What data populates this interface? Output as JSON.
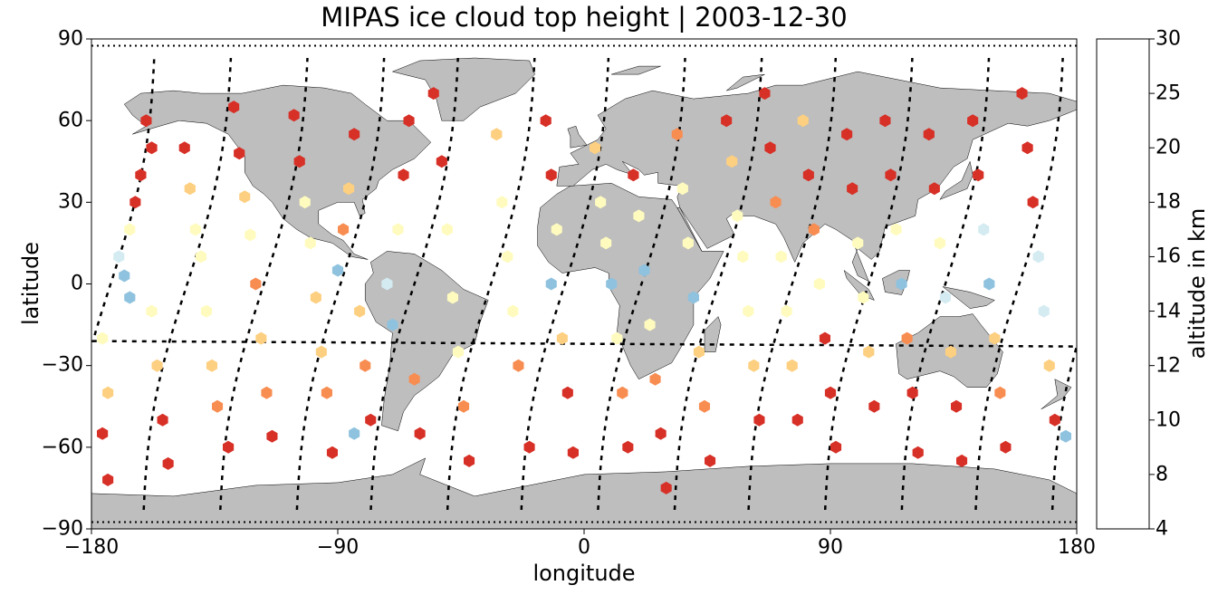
{
  "title": "MIPAS ice cloud top height | 2003-12-30",
  "xlabel": "longitude",
  "ylabel": "latitude",
  "colorbar_label": "altitude in km",
  "x_ticks": [
    "−180",
    "−90",
    "0",
    "90",
    "180"
  ],
  "y_ticks": [
    "−90",
    "−60",
    "−30",
    "0",
    "30",
    "60",
    "90"
  ],
  "colorbar_ticks": [
    "4",
    "8",
    "10",
    "12",
    "14",
    "16",
    "18",
    "20",
    "25",
    "30"
  ],
  "colors": {
    "land": "#bebebe",
    "coast": "#000000",
    "track": "#000000"
  },
  "chart_data": {
    "type": "scatter",
    "projection": "plate-carree",
    "title": "MIPAS ice cloud top height | 2003-12-30",
    "xlabel": "longitude",
    "ylabel": "latitude",
    "xlim": [
      -180,
      180
    ],
    "ylim": [
      -90,
      90
    ],
    "colorbar": {
      "label": "altitude in km",
      "bounds": [
        4,
        8,
        10,
        12,
        14,
        16,
        18,
        20,
        25,
        30
      ],
      "colors": [
        "#a50026",
        "#d73027",
        "#f46d43",
        "#fdae61",
        "#fee090",
        "#ffffbf",
        "#e0f3f8",
        "#abd9e9",
        "#74add1",
        "#4575b4",
        "#313695"
      ],
      "bin_colors": [
        "#a50026",
        "#d73027",
        "#f88d52",
        "#fdcf80",
        "#fffbbf",
        "#d4ebf2",
        "#8fc2de",
        "#4f82b8",
        "#313694"
      ]
    },
    "marker": "hexagon",
    "orbit_tracks_lon_at_equator": [
      -173,
      -145,
      -117,
      -89,
      -62,
      -34,
      -7,
      21,
      49,
      76,
      104,
      132,
      159
    ],
    "points": [
      [
        -170,
        10,
        16
      ],
      [
        -168,
        3,
        19
      ],
      [
        -166,
        -5,
        19
      ],
      [
        -176,
        -20,
        14
      ],
      [
        -174,
        -40,
        12
      ],
      [
        -176,
        -55,
        9
      ],
      [
        -174,
        -72,
        8
      ],
      [
        -160,
        60,
        9
      ],
      [
        -158,
        50,
        8
      ],
      [
        -162,
        40,
        8
      ],
      [
        -164,
        30,
        9
      ],
      [
        -166,
        20,
        15
      ],
      [
        -158,
        -10,
        14
      ],
      [
        -156,
        -30,
        12
      ],
      [
        -154,
        -50,
        9
      ],
      [
        -152,
        -66,
        8
      ],
      [
        -146,
        50,
        9
      ],
      [
        -144,
        35,
        13
      ],
      [
        -142,
        20,
        15
      ],
      [
        -140,
        10,
        15
      ],
      [
        -138,
        -10,
        14
      ],
      [
        -136,
        -30,
        12
      ],
      [
        -134,
        -45,
        11
      ],
      [
        -130,
        -60,
        9
      ],
      [
        -128,
        65,
        8
      ],
      [
        -126,
        48,
        9
      ],
      [
        -124,
        32,
        13
      ],
      [
        -122,
        18,
        15
      ],
      [
        -120,
        0,
        10
      ],
      [
        -118,
        -20,
        12
      ],
      [
        -116,
        -40,
        10
      ],
      [
        -114,
        -56,
        9
      ],
      [
        -106,
        62,
        8
      ],
      [
        -104,
        45,
        9
      ],
      [
        -102,
        30,
        14
      ],
      [
        -100,
        15,
        15
      ],
      [
        -98,
        -5,
        13
      ],
      [
        -96,
        -25,
        12
      ],
      [
        -94,
        -40,
        10
      ],
      [
        -92,
        -62,
        9
      ],
      [
        -90,
        5,
        19
      ],
      [
        -88,
        20,
        10
      ],
      [
        -86,
        35,
        12
      ],
      [
        -84,
        55,
        8
      ],
      [
        -82,
        -10,
        12
      ],
      [
        -80,
        -30,
        10
      ],
      [
        -78,
        -50,
        9
      ],
      [
        -84,
        -55,
        19
      ],
      [
        -72,
        0,
        16
      ],
      [
        -70,
        -15,
        19
      ],
      [
        -68,
        20,
        15
      ],
      [
        -66,
        40,
        9
      ],
      [
        -64,
        60,
        9
      ],
      [
        -62,
        -35,
        10
      ],
      [
        -60,
        -55,
        8
      ],
      [
        -55,
        70,
        8
      ],
      [
        -52,
        45,
        9
      ],
      [
        -50,
        20,
        15
      ],
      [
        -48,
        -5,
        15
      ],
      [
        -46,
        -25,
        14
      ],
      [
        -44,
        -45,
        10
      ],
      [
        -42,
        -65,
        9
      ],
      [
        -32,
        55,
        12
      ],
      [
        -30,
        30,
        14
      ],
      [
        -28,
        10,
        15
      ],
      [
        -26,
        -10,
        15
      ],
      [
        -24,
        -30,
        10
      ],
      [
        -20,
        -60,
        8
      ],
      [
        -14,
        60,
        8
      ],
      [
        -12,
        40,
        9
      ],
      [
        -10,
        20,
        15
      ],
      [
        -12,
        0,
        19
      ],
      [
        -8,
        -20,
        12
      ],
      [
        -6,
        -40,
        9
      ],
      [
        -4,
        -62,
        8
      ],
      [
        4,
        50,
        12
      ],
      [
        6,
        30,
        14
      ],
      [
        8,
        15,
        15
      ],
      [
        10,
        0,
        19
      ],
      [
        12,
        -20,
        14
      ],
      [
        14,
        -40,
        10
      ],
      [
        16,
        -60,
        9
      ],
      [
        18,
        40,
        8
      ],
      [
        20,
        25,
        15
      ],
      [
        22,
        5,
        18
      ],
      [
        24,
        -15,
        15
      ],
      [
        26,
        -35,
        10
      ],
      [
        28,
        -55,
        9
      ],
      [
        30,
        -75,
        8
      ],
      [
        34,
        55,
        10
      ],
      [
        36,
        35,
        14
      ],
      [
        38,
        15,
        15
      ],
      [
        40,
        -5,
        18
      ],
      [
        42,
        -25,
        13
      ],
      [
        44,
        -45,
        10
      ],
      [
        46,
        -65,
        9
      ],
      [
        52,
        60,
        8
      ],
      [
        54,
        45,
        12
      ],
      [
        56,
        25,
        14
      ],
      [
        58,
        10,
        15
      ],
      [
        60,
        -10,
        15
      ],
      [
        62,
        -30,
        12
      ],
      [
        64,
        -50,
        9
      ],
      [
        66,
        70,
        8
      ],
      [
        68,
        50,
        9
      ],
      [
        70,
        30,
        10
      ],
      [
        72,
        10,
        15
      ],
      [
        74,
        -10,
        15
      ],
      [
        76,
        -30,
        12
      ],
      [
        78,
        -50,
        9
      ],
      [
        80,
        60,
        13
      ],
      [
        82,
        40,
        9
      ],
      [
        84,
        20,
        10
      ],
      [
        86,
        0,
        15
      ],
      [
        88,
        -20,
        9
      ],
      [
        90,
        -40,
        8
      ],
      [
        92,
        -60,
        9
      ],
      [
        96,
        55,
        8
      ],
      [
        98,
        35,
        9
      ],
      [
        100,
        15,
        14
      ],
      [
        102,
        -5,
        15
      ],
      [
        104,
        -25,
        12
      ],
      [
        106,
        -45,
        9
      ],
      [
        110,
        60,
        9
      ],
      [
        112,
        40,
        9
      ],
      [
        114,
        20,
        14
      ],
      [
        116,
        0,
        18
      ],
      [
        118,
        -20,
        10
      ],
      [
        120,
        -40,
        9
      ],
      [
        122,
        -62,
        8
      ],
      [
        126,
        55,
        9
      ],
      [
        128,
        35,
        8
      ],
      [
        130,
        15,
        15
      ],
      [
        132,
        -5,
        17
      ],
      [
        134,
        -25,
        12
      ],
      [
        136,
        -45,
        9
      ],
      [
        138,
        -65,
        9
      ],
      [
        142,
        60,
        8
      ],
      [
        144,
        40,
        8
      ],
      [
        146,
        20,
        16
      ],
      [
        148,
        0,
        18
      ],
      [
        150,
        -20,
        12
      ],
      [
        152,
        -40,
        10
      ],
      [
        154,
        -60,
        9
      ],
      [
        160,
        70,
        9
      ],
      [
        162,
        50,
        8
      ],
      [
        164,
        30,
        8
      ],
      [
        166,
        10,
        16
      ],
      [
        168,
        -10,
        17
      ],
      [
        170,
        -30,
        13
      ],
      [
        172,
        -50,
        9
      ],
      [
        176,
        -56,
        19
      ]
    ]
  }
}
